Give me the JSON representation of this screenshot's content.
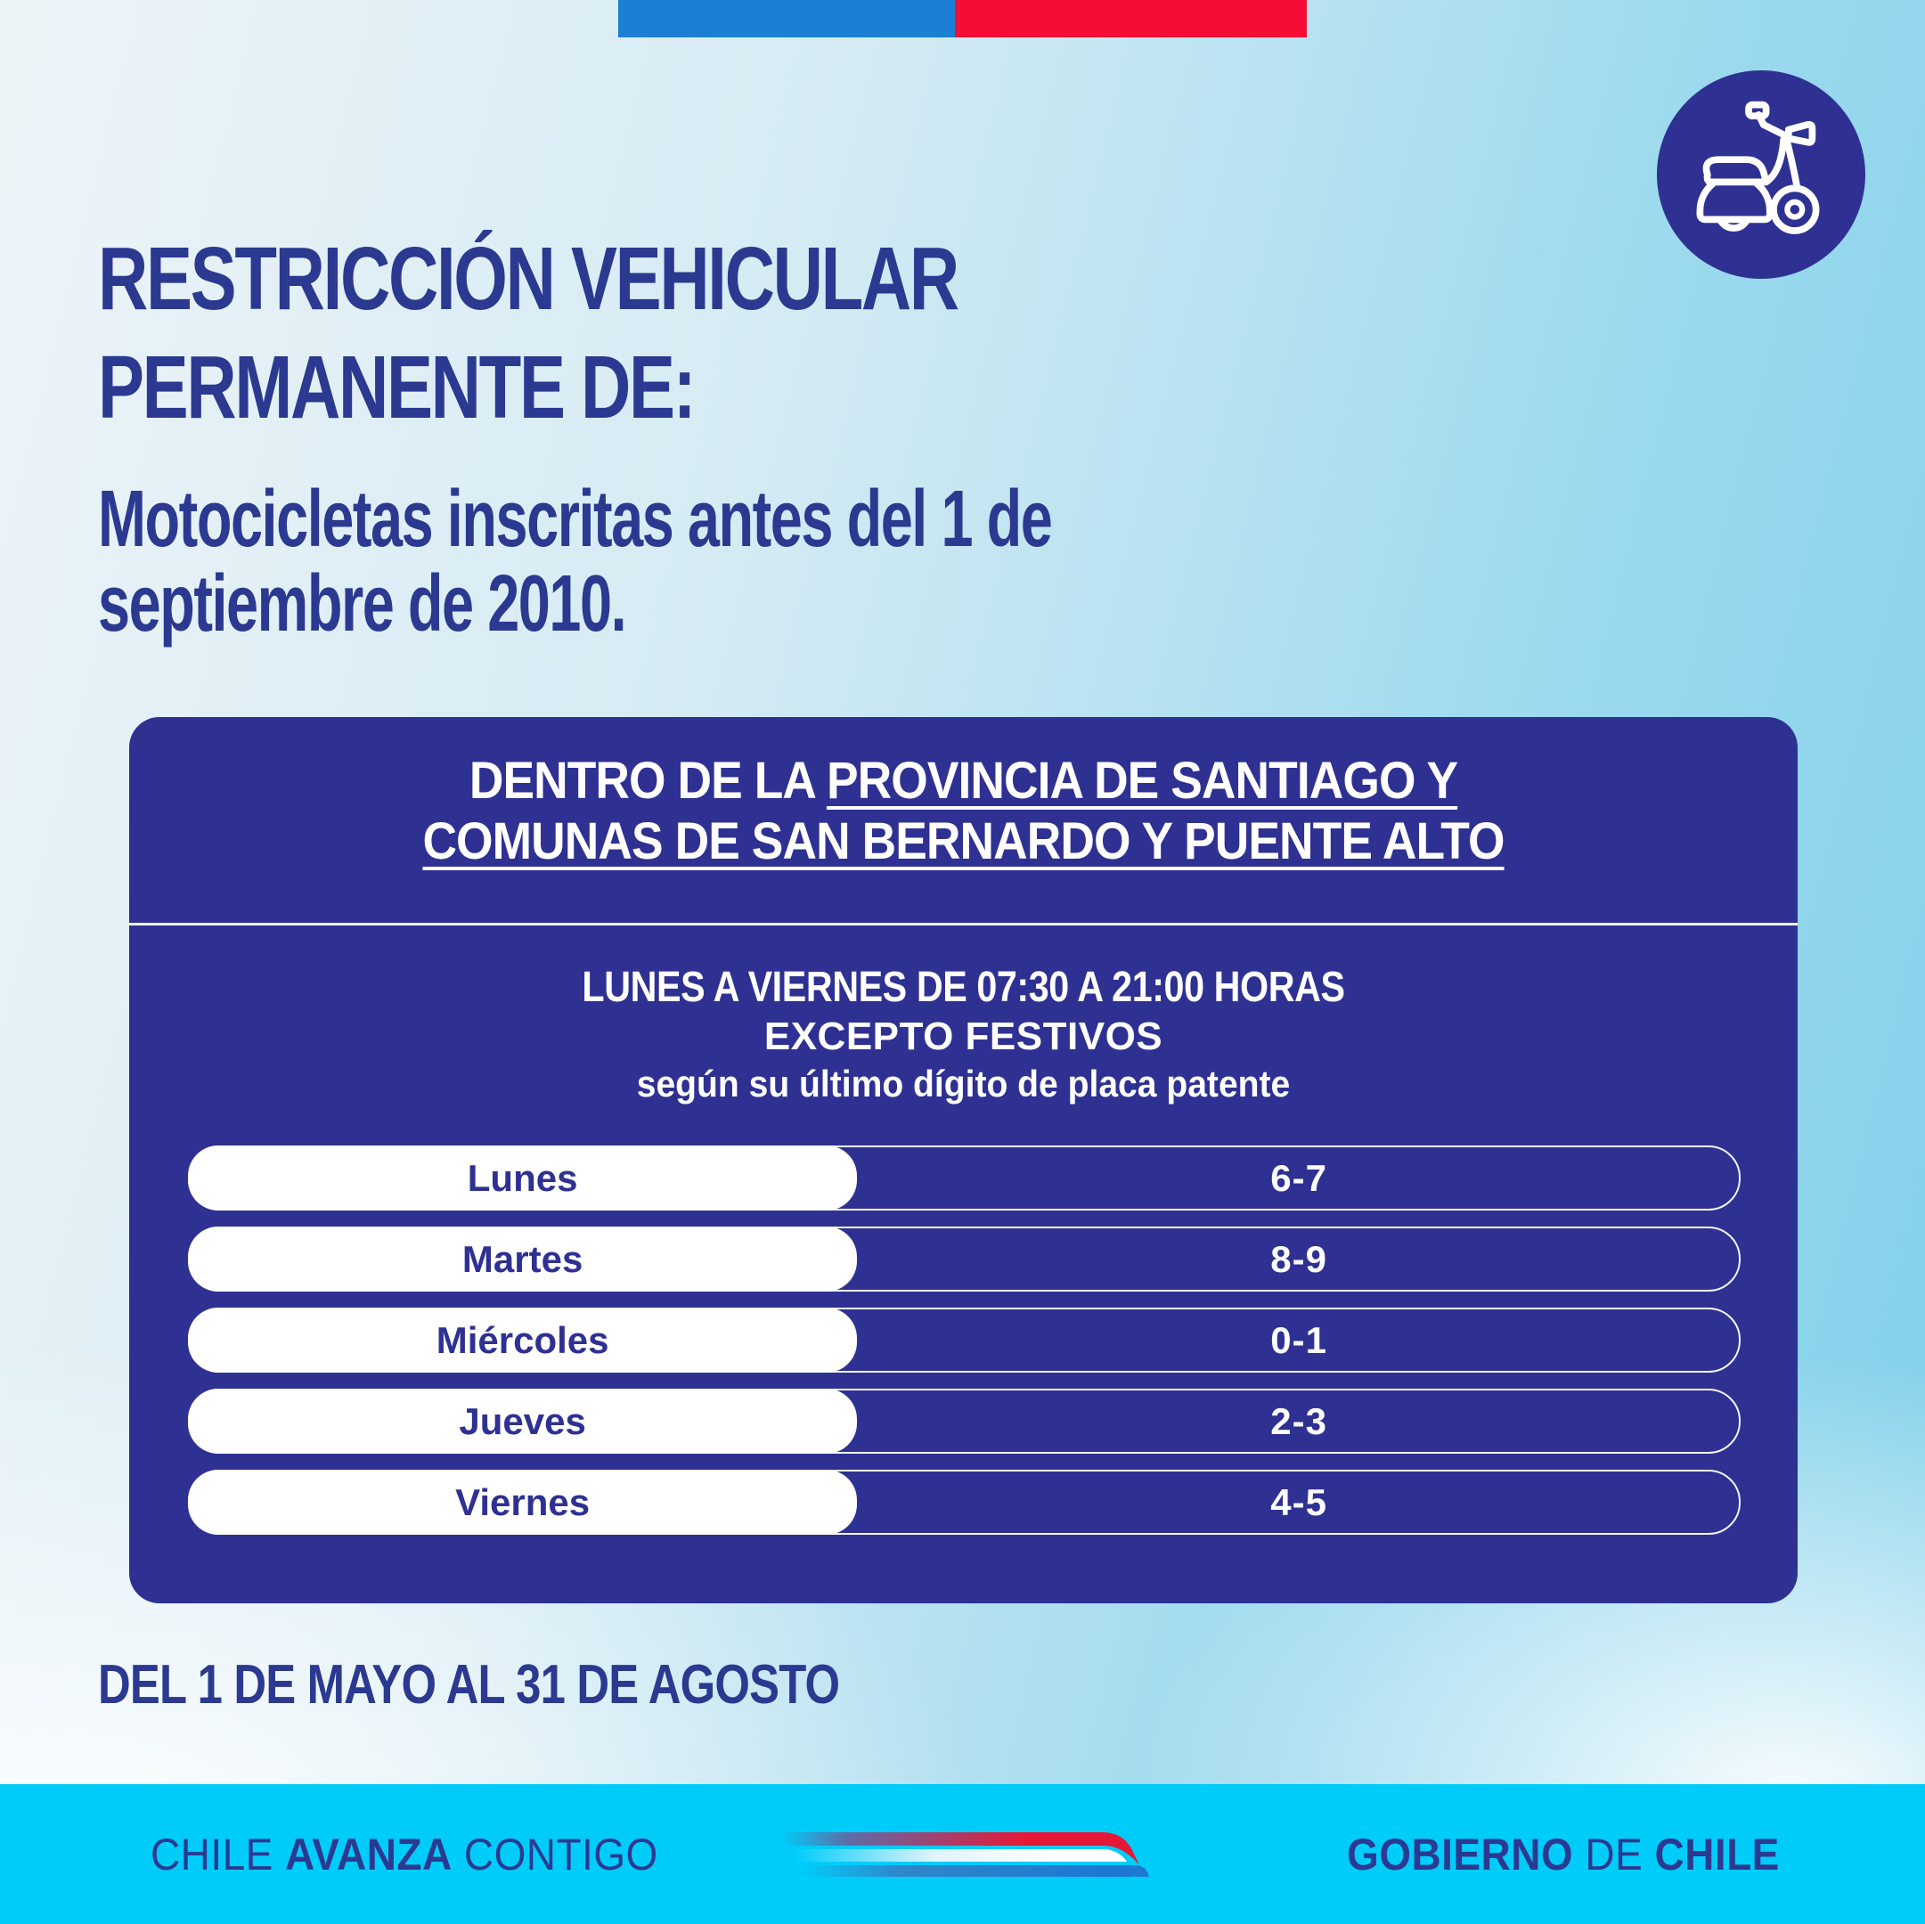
{
  "top_banner": {
    "blue_bar_color": "#1b7fd4",
    "red_bar_color": "#f40d35"
  },
  "header": {
    "icon": "scooter",
    "title_lines": [
      "RESTRICCIÓN VEHICULAR",
      "PERMANENTE DE:"
    ],
    "subtitle_lines": [
      "Motocicletas inscritas antes del 1 de",
      "septiembre de 2010."
    ]
  },
  "card": {
    "region": {
      "line1_prefix": "DENTRO DE LA ",
      "line1_underlined": "PROVINCIA DE SANTIAGO Y",
      "line2_underlined": "COMUNAS DE SAN BERNARDO Y PUENTE ALTO"
    },
    "schedule": "LUNES A VIERNES DE 07:30 A 21:00 HORAS",
    "exception": "EXCEPTO FESTIVOS",
    "criteria": "según su último dígito de placa patente",
    "table": {
      "rows": [
        {
          "day": "Lunes",
          "digits": "6-7"
        },
        {
          "day": "Martes",
          "digits": "8-9"
        },
        {
          "day": "Miércoles",
          "digits": "0-1"
        },
        {
          "day": "Jueves",
          "digits": "2-3"
        },
        {
          "day": "Viernes",
          "digits": "4-5"
        }
      ]
    }
  },
  "period": "DEL 1 DE MAYO AL 31 DE AGOSTO",
  "footer": {
    "slogan": {
      "word1": "CHILE",
      "word2": "AVANZA",
      "word3": "CONTIGO"
    },
    "government": {
      "word1": "GOBIERNO",
      "word2": "DE",
      "word3": "CHILE"
    },
    "bar_color": "#00ccfa"
  },
  "colors": {
    "card_background": "#2e3192",
    "navy_text": "#2b3990",
    "white": "#ffffff"
  }
}
